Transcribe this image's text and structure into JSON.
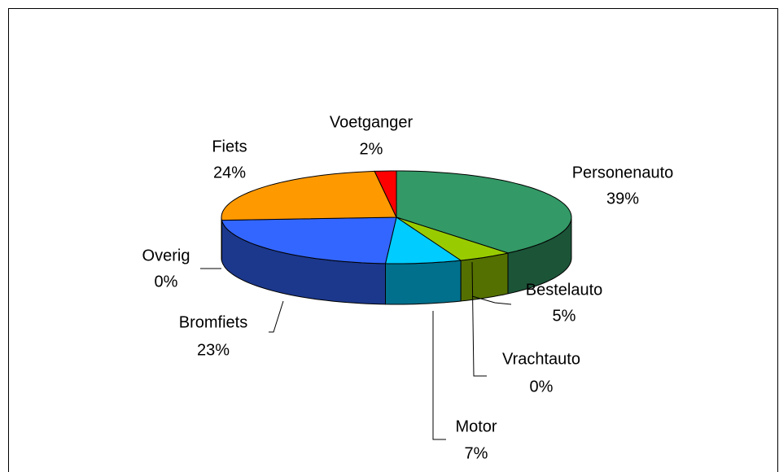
{
  "chart_data": {
    "type": "pie3d",
    "categories": [
      "Personenauto",
      "Bestelauto",
      "Vrachtauto",
      "Motor",
      "Bromfiets",
      "Overig",
      "Fiets",
      "Voetganger"
    ],
    "values": [
      39,
      5,
      0,
      7,
      23,
      0,
      24,
      2
    ],
    "value_labels": [
      "39%",
      "5%",
      "0%",
      "7%",
      "23%",
      "0%",
      "24%",
      "2%"
    ],
    "colors": [
      "#339966",
      "#99cc00",
      "#336600",
      "#00ccff",
      "#3366ff",
      "#333399",
      "#ff9900",
      "#ff0000"
    ]
  }
}
